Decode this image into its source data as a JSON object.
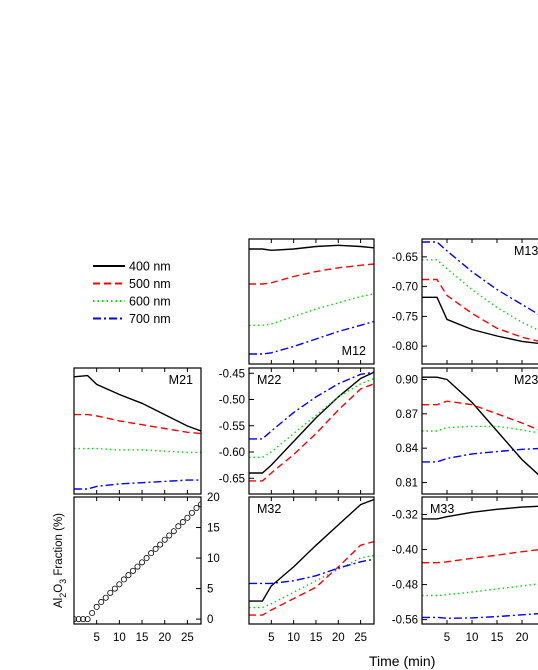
{
  "figure": {
    "x_label": "Time (min)",
    "legend": [
      {
        "label": "400 nm",
        "color": "#000000",
        "dash": "solid"
      },
      {
        "label": "500 nm",
        "color": "#ff0000",
        "dash": "dashed"
      },
      {
        "label": "600 nm",
        "color": "#00dd00",
        "dash": "dotted"
      },
      {
        "label": "700 nm",
        "color": "#0000ff",
        "dash": "dash-dot"
      }
    ],
    "colors": {
      "s400": "#000000",
      "s500": "#ff0000",
      "s600": "#00dd00",
      "s700": "#0000ff"
    }
  },
  "chart_data": [
    {
      "type": "line",
      "title": "M12",
      "x": [
        0,
        3,
        5,
        10,
        15,
        20,
        25,
        28
      ],
      "xlim": [
        0,
        28
      ],
      "ylim": [
        0,
        1
      ],
      "y_ticks": [],
      "series": [
        {
          "name": "400 nm",
          "values": [
            0.92,
            0.92,
            0.91,
            0.92,
            0.94,
            0.95,
            0.94,
            0.93
          ]
        },
        {
          "name": "500 nm",
          "values": [
            0.64,
            0.64,
            0.65,
            0.7,
            0.74,
            0.77,
            0.79,
            0.8
          ]
        },
        {
          "name": "600 nm",
          "values": [
            0.31,
            0.31,
            0.32,
            0.38,
            0.44,
            0.49,
            0.54,
            0.56
          ]
        },
        {
          "name": "700 nm",
          "values": [
            0.08,
            0.08,
            0.09,
            0.14,
            0.2,
            0.26,
            0.31,
            0.34
          ]
        }
      ]
    },
    {
      "type": "line",
      "title": "M13",
      "x": [
        0,
        3,
        5,
        10,
        15,
        20,
        25,
        28
      ],
      "xlim": [
        0,
        28
      ],
      "ylim": [
        -0.83,
        -0.62
      ],
      "y_ticks": [
        -0.8,
        -0.75,
        -0.7,
        -0.65
      ],
      "series": [
        {
          "name": "400 nm",
          "values": [
            -0.718,
            -0.718,
            -0.755,
            -0.772,
            -0.783,
            -0.792,
            -0.797,
            -0.798
          ]
        },
        {
          "name": "500 nm",
          "values": [
            -0.688,
            -0.688,
            -0.715,
            -0.745,
            -0.77,
            -0.785,
            -0.795,
            -0.8
          ]
        },
        {
          "name": "600 nm",
          "values": [
            -0.655,
            -0.655,
            -0.67,
            -0.705,
            -0.735,
            -0.76,
            -0.78,
            -0.79
          ]
        },
        {
          "name": "700 nm",
          "values": [
            -0.625,
            -0.625,
            -0.64,
            -0.675,
            -0.705,
            -0.73,
            -0.755,
            -0.77
          ]
        }
      ]
    },
    {
      "type": "line",
      "title": "M21",
      "x": [
        0,
        3,
        5,
        10,
        15,
        20,
        25,
        28
      ],
      "xlim": [
        0,
        28
      ],
      "ylim": [
        0,
        1
      ],
      "y_ticks": [],
      "series": [
        {
          "name": "400 nm",
          "values": [
            0.93,
            0.94,
            0.87,
            0.79,
            0.72,
            0.63,
            0.54,
            0.5
          ]
        },
        {
          "name": "500 nm",
          "values": [
            0.63,
            0.63,
            0.62,
            0.58,
            0.55,
            0.52,
            0.49,
            0.48
          ]
        },
        {
          "name": "600 nm",
          "values": [
            0.36,
            0.36,
            0.36,
            0.35,
            0.35,
            0.34,
            0.33,
            0.33
          ]
        },
        {
          "name": "700 nm",
          "values": [
            0.04,
            0.04,
            0.06,
            0.08,
            0.09,
            0.1,
            0.11,
            0.11
          ]
        }
      ]
    },
    {
      "type": "line",
      "title": "M22",
      "x": [
        0,
        3,
        5,
        10,
        15,
        20,
        25,
        28
      ],
      "xlim": [
        0,
        28
      ],
      "ylim": [
        -0.68,
        -0.44
      ],
      "y_ticks": [
        -0.65,
        -0.6,
        -0.55,
        -0.5,
        -0.45
      ],
      "series": [
        {
          "name": "400 nm",
          "values": [
            -0.64,
            -0.64,
            -0.625,
            -0.58,
            -0.535,
            -0.495,
            -0.46,
            -0.448
          ]
        },
        {
          "name": "500 nm",
          "values": [
            -0.655,
            -0.655,
            -0.64,
            -0.605,
            -0.565,
            -0.52,
            -0.48,
            -0.47
          ]
        },
        {
          "name": "600 nm",
          "values": [
            -0.61,
            -0.61,
            -0.6,
            -0.565,
            -0.53,
            -0.495,
            -0.47,
            -0.46
          ]
        },
        {
          "name": "700 nm",
          "values": [
            -0.575,
            -0.575,
            -0.56,
            -0.525,
            -0.495,
            -0.47,
            -0.452,
            -0.448
          ]
        }
      ]
    },
    {
      "type": "line",
      "title": "M23",
      "x": [
        0,
        3,
        5,
        10,
        15,
        20,
        25,
        28
      ],
      "xlim": [
        0,
        28
      ],
      "ylim": [
        0.8,
        0.91
      ],
      "y_ticks": [
        0.81,
        0.84,
        0.87,
        0.9
      ],
      "series": [
        {
          "name": "400 nm",
          "values": [
            0.902,
            0.902,
            0.9,
            0.88,
            0.855,
            0.83,
            0.81,
            0.8
          ]
        },
        {
          "name": "500 nm",
          "values": [
            0.878,
            0.878,
            0.881,
            0.878,
            0.87,
            0.862,
            0.853,
            0.848
          ]
        },
        {
          "name": "600 nm",
          "values": [
            0.855,
            0.855,
            0.858,
            0.859,
            0.859,
            0.856,
            0.852,
            0.85
          ]
        },
        {
          "name": "700 nm",
          "values": [
            0.828,
            0.828,
            0.831,
            0.835,
            0.837,
            0.839,
            0.84,
            0.84
          ]
        }
      ]
    },
    {
      "type": "scatter",
      "title": "",
      "x": [
        0,
        1,
        2,
        3,
        4,
        5,
        6,
        7,
        8,
        9,
        10,
        11,
        12,
        13,
        14,
        15,
        16,
        17,
        18,
        19,
        20,
        21,
        22,
        23,
        24,
        25,
        26,
        27,
        28
      ],
      "xlim": [
        0,
        28
      ],
      "ylim": [
        -0.8,
        20
      ],
      "y_ticks": [
        0,
        5,
        10,
        15,
        20
      ],
      "x_ticks": [
        5,
        10,
        15,
        20,
        25
      ],
      "ylabel": "Al",
      "ylabel_sub1": "2",
      "ylabel_mid": "O",
      "ylabel_sub2": "3",
      "ylabel_rest": " Fraction (%)",
      "series": [
        {
          "values": [
            0,
            0,
            0,
            0,
            1.0,
            2.0,
            2.8,
            3.5,
            4.3,
            5.0,
            5.7,
            6.5,
            7.2,
            7.9,
            8.6,
            9.3,
            10.0,
            10.8,
            11.5,
            12.2,
            13.0,
            13.7,
            14.4,
            15.2,
            15.9,
            16.6,
            17.4,
            18.2,
            18.8
          ]
        }
      ]
    },
    {
      "type": "line",
      "title": "M32",
      "x": [
        0,
        3,
        5,
        10,
        15,
        20,
        25,
        28
      ],
      "xlim": [
        0,
        28
      ],
      "ylim": [
        0,
        1
      ],
      "y_ticks": [],
      "x_ticks": [
        5,
        10,
        15,
        20,
        25
      ],
      "series": [
        {
          "name": "400 nm",
          "values": [
            0.18,
            0.18,
            0.3,
            0.45,
            0.62,
            0.78,
            0.94,
            0.98
          ]
        },
        {
          "name": "500 nm",
          "values": [
            0.07,
            0.07,
            0.11,
            0.2,
            0.29,
            0.45,
            0.62,
            0.65
          ]
        },
        {
          "name": "600 nm",
          "values": [
            0.13,
            0.13,
            0.16,
            0.25,
            0.34,
            0.43,
            0.52,
            0.54
          ]
        },
        {
          "name": "700 nm",
          "values": [
            0.32,
            0.32,
            0.32,
            0.34,
            0.38,
            0.44,
            0.49,
            0.51
          ]
        }
      ]
    },
    {
      "type": "line",
      "title": "M33",
      "x": [
        0,
        3,
        5,
        10,
        15,
        20,
        25,
        28
      ],
      "xlim": [
        0,
        28
      ],
      "ylim": [
        -0.57,
        -0.28
      ],
      "y_ticks": [
        -0.56,
        -0.48,
        -0.4,
        -0.32
      ],
      "x_ticks": [
        5,
        10,
        15,
        20,
        25
      ],
      "series": [
        {
          "name": "400 nm",
          "values": [
            -0.33,
            -0.33,
            -0.325,
            -0.315,
            -0.308,
            -0.303,
            -0.3,
            -0.3
          ]
        },
        {
          "name": "500 nm",
          "values": [
            -0.43,
            -0.43,
            -0.428,
            -0.42,
            -0.413,
            -0.405,
            -0.398,
            -0.395
          ]
        },
        {
          "name": "600 nm",
          "values": [
            -0.505,
            -0.505,
            -0.503,
            -0.497,
            -0.49,
            -0.483,
            -0.476,
            -0.473
          ]
        },
        {
          "name": "700 nm",
          "values": [
            -0.555,
            -0.555,
            -0.557,
            -0.556,
            -0.553,
            -0.549,
            -0.545,
            -0.543
          ]
        }
      ]
    }
  ]
}
